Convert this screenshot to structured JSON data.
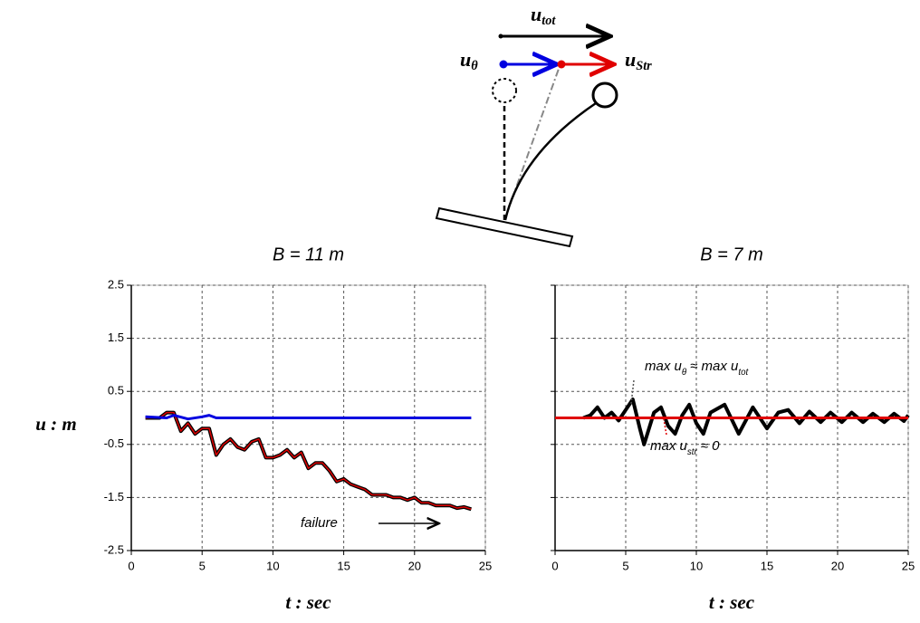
{
  "diagram": {
    "labels": [
      {
        "parts": [
          "u",
          "tot"
        ]
      },
      {
        "parts": [
          "u",
          "θ"
        ]
      },
      {
        "parts": [
          "u",
          "Str"
        ]
      }
    ]
  },
  "chart_data": [
    {
      "type": "line",
      "title": "B = 11 m",
      "x_label": "t : sec",
      "y_label": "u : m",
      "xlim": [
        0,
        25
      ],
      "xticks": [
        0,
        5,
        10,
        15,
        20,
        25
      ],
      "ylim": [
        -2.5,
        2.5
      ],
      "yticks": [
        -2.5,
        -1.5,
        -0.5,
        0.5,
        1.5,
        2.5
      ],
      "grid": true,
      "series": [
        {
          "color": "#000000",
          "x": [
            1,
            2,
            2.5,
            3,
            3.5,
            4,
            4.5,
            5,
            5.5,
            6,
            6.5,
            7,
            7.5,
            8,
            8.5,
            9,
            9.5,
            10,
            10.5,
            11,
            11.5,
            12,
            12.5,
            13,
            13.5,
            14,
            14.5,
            15,
            15.5,
            16,
            16.5,
            17,
            17.5,
            18,
            18.5,
            19,
            19.5,
            20,
            20.5,
            21,
            21.5,
            22,
            22.5,
            23,
            23.5,
            24
          ],
          "values": [
            0,
            0,
            0.1,
            0.1,
            -0.25,
            -0.1,
            -0.3,
            -0.2,
            -0.2,
            -0.7,
            -0.5,
            -0.4,
            -0.55,
            -0.6,
            -0.45,
            -0.4,
            -0.75,
            -0.75,
            -0.7,
            -0.6,
            -0.75,
            -0.65,
            -0.95,
            -0.85,
            -0.85,
            -1.0,
            -1.2,
            -1.15,
            -1.25,
            -1.3,
            -1.35,
            -1.45,
            -1.45,
            -1.45,
            -1.5,
            -1.5,
            -1.55,
            -1.5,
            -1.6,
            -1.6,
            -1.65,
            -1.65,
            -1.65,
            -1.7,
            -1.68,
            -1.72
          ]
        },
        {
          "color": "#e00000",
          "x": [
            1,
            2,
            2.5,
            3,
            3.5,
            4,
            4.5,
            5,
            5.5,
            6,
            6.5,
            7,
            7.5,
            8,
            8.5,
            9,
            9.5,
            10,
            10.5,
            11,
            11.5,
            12,
            12.5,
            13,
            13.5,
            14,
            14.5,
            15,
            15.5,
            16,
            16.5,
            17,
            17.5,
            18,
            18.5,
            19,
            19.5,
            20,
            20.5,
            21,
            21.5,
            22,
            22.5,
            23,
            23.5,
            24
          ],
          "values": [
            0,
            0,
            0.1,
            0.1,
            -0.25,
            -0.1,
            -0.3,
            -0.2,
            -0.2,
            -0.7,
            -0.5,
            -0.4,
            -0.55,
            -0.6,
            -0.45,
            -0.4,
            -0.75,
            -0.75,
            -0.7,
            -0.6,
            -0.75,
            -0.65,
            -0.95,
            -0.85,
            -0.85,
            -1.0,
            -1.2,
            -1.15,
            -1.25,
            -1.3,
            -1.35,
            -1.45,
            -1.45,
            -1.45,
            -1.5,
            -1.5,
            -1.55,
            -1.5,
            -1.6,
            -1.6,
            -1.65,
            -1.65,
            -1.65,
            -1.7,
            -1.68,
            -1.72
          ]
        },
        {
          "color": "#0000e0",
          "x": [
            1,
            2.5,
            3,
            4,
            5,
            5.5,
            6,
            7,
            10,
            15,
            20,
            24
          ],
          "values": [
            0.02,
            0,
            0.05,
            -0.02,
            0.02,
            0.05,
            0,
            0,
            0,
            0,
            0,
            0
          ]
        }
      ],
      "annotations": [
        {
          "parts": [
            "failure"
          ]
        }
      ]
    },
    {
      "type": "line",
      "title": "B = 7 m",
      "x_label": "t : sec",
      "xlim": [
        0,
        25
      ],
      "xticks": [
        0,
        5,
        10,
        15,
        20,
        25
      ],
      "ylim": [
        -2.5,
        2.5
      ],
      "yticks": [
        -2.5,
        -1.5,
        -0.5,
        0.5,
        1.5,
        2.5
      ],
      "grid": true,
      "series": [
        {
          "color": "#000000",
          "x": [
            2,
            2.5,
            3,
            3.5,
            4,
            4.5,
            5,
            5.5,
            6,
            6.3,
            7,
            7.5,
            8,
            8.5,
            9,
            9.5,
            10,
            10.5,
            11,
            12,
            13,
            14,
            15,
            15.8,
            16.5,
            17.3,
            18,
            18.8,
            19.5,
            20.3,
            21,
            21.8,
            22.5,
            23.3,
            24,
            24.7,
            25
          ],
          "values": [
            0,
            0.05,
            0.2,
            0,
            0.1,
            -0.05,
            0.15,
            0.35,
            -0.2,
            -0.5,
            0.1,
            0.2,
            -0.15,
            -0.3,
            0.05,
            0.25,
            -0.1,
            -0.3,
            0.1,
            0.25,
            -0.3,
            0.2,
            -0.2,
            0.1,
            0.15,
            -0.1,
            0.12,
            -0.08,
            0.1,
            -0.08,
            0.1,
            -0.08,
            0.08,
            -0.08,
            0.08,
            -0.06,
            0.05
          ]
        },
        {
          "color": "#e00000",
          "x": [
            0,
            25
          ],
          "values": [
            0,
            0
          ]
        }
      ],
      "annotations": [
        {
          "parts": [
            "max u",
            "θ",
            "≈ max u",
            "tot"
          ]
        },
        {
          "parts": [
            "max u",
            "str",
            "≈ 0"
          ]
        }
      ]
    }
  ]
}
